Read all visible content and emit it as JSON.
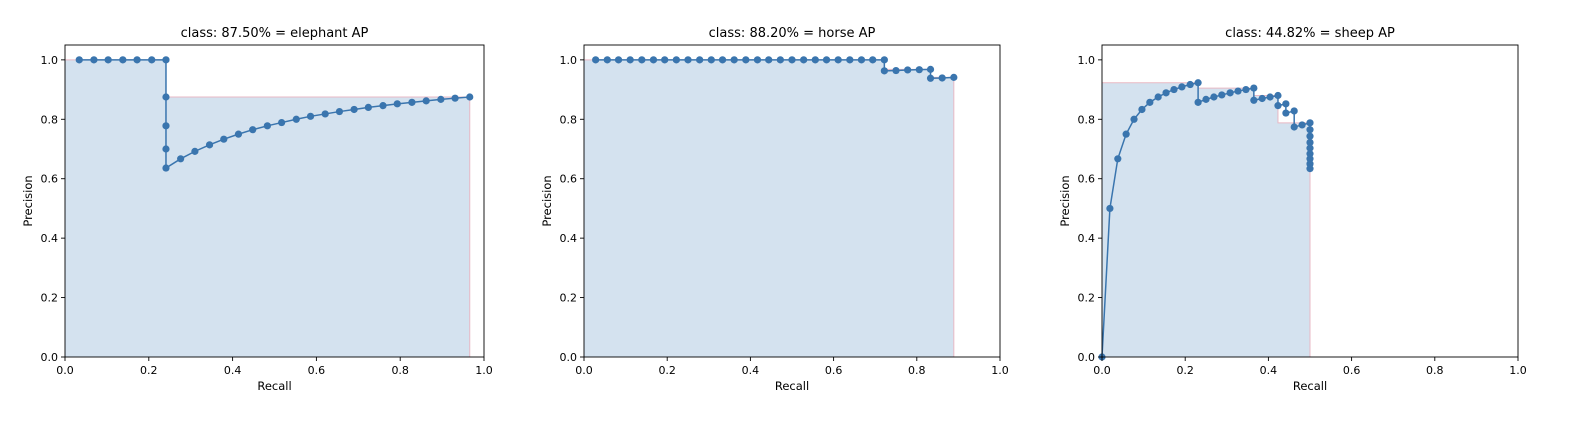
{
  "chart_data": [
    {
      "type": "line",
      "title": "class: 87.50% = elephant AP",
      "xlabel": "Recall",
      "ylabel": "Precision",
      "xlim": [
        0,
        1.0
      ],
      "ylim": [
        0,
        1.05
      ],
      "xticks": [
        "0.0",
        "0.2",
        "0.4",
        "0.6",
        "0.8",
        "1.0"
      ],
      "yticks": [
        "0.0",
        "0.2",
        "0.4",
        "0.6",
        "0.8",
        "1.0"
      ],
      "colors": {
        "line": "#3a75ae",
        "fill": "#d4e2ef",
        "edge": "#e8b8c4"
      },
      "series": [
        {
          "x": [
            0.034,
            0.069,
            0.103,
            0.138,
            0.172,
            0.207,
            0.241,
            0.241,
            0.241,
            0.241,
            0.241,
            0.276,
            0.31,
            0.345,
            0.379,
            0.414,
            0.448,
            0.483,
            0.517,
            0.552,
            0.586,
            0.621,
            0.655,
            0.69,
            0.724,
            0.759,
            0.793,
            0.828,
            0.862,
            0.897,
            0.931,
            0.966
          ],
          "y": [
            1.0,
            1.0,
            1.0,
            1.0,
            1.0,
            1.0,
            1.0,
            0.875,
            0.778,
            0.7,
            0.636,
            0.667,
            0.692,
            0.714,
            0.733,
            0.75,
            0.765,
            0.778,
            0.789,
            0.8,
            0.81,
            0.818,
            0.826,
            0.833,
            0.84,
            0.846,
            0.852,
            0.857,
            0.862,
            0.867,
            0.871,
            0.875
          ]
        }
      ],
      "interpolated": {
        "x": [
          0,
          0.241,
          0.241,
          0.966,
          0.966
        ],
        "y": [
          1.0,
          1.0,
          0.875,
          0.875,
          0
        ]
      }
    },
    {
      "type": "line",
      "title": "class: 88.20% = horse AP",
      "xlabel": "Recall",
      "ylabel": "Precision",
      "xlim": [
        0,
        1.0
      ],
      "ylim": [
        0,
        1.05
      ],
      "xticks": [
        "0.0",
        "0.2",
        "0.4",
        "0.6",
        "0.8",
        "1.0"
      ],
      "yticks": [
        "0.0",
        "0.2",
        "0.4",
        "0.6",
        "0.8",
        "1.0"
      ],
      "colors": {
        "line": "#3a75ae",
        "fill": "#d4e2ef",
        "edge": "#e8b8c4"
      },
      "series": [
        {
          "x": [
            0.028,
            0.056,
            0.083,
            0.111,
            0.139,
            0.167,
            0.194,
            0.222,
            0.25,
            0.278,
            0.306,
            0.333,
            0.361,
            0.389,
            0.417,
            0.444,
            0.472,
            0.5,
            0.528,
            0.556,
            0.583,
            0.611,
            0.639,
            0.667,
            0.694,
            0.722,
            0.722,
            0.75,
            0.778,
            0.806,
            0.833,
            0.833,
            0.861,
            0.889
          ],
          "y": [
            1.0,
            1.0,
            1.0,
            1.0,
            1.0,
            1.0,
            1.0,
            1.0,
            1.0,
            1.0,
            1.0,
            1.0,
            1.0,
            1.0,
            1.0,
            1.0,
            1.0,
            1.0,
            1.0,
            1.0,
            1.0,
            1.0,
            1.0,
            1.0,
            1.0,
            1.0,
            0.963,
            0.964,
            0.966,
            0.967,
            0.968,
            0.938,
            0.939,
            0.941
          ]
        }
      ],
      "interpolated": {
        "x": [
          0,
          0.722,
          0.722,
          0.833,
          0.833,
          0.889,
          0.889
        ],
        "y": [
          1.0,
          1.0,
          0.968,
          0.968,
          0.941,
          0.941,
          0
        ]
      }
    },
    {
      "type": "line",
      "title": "class: 44.82% = sheep AP",
      "xlabel": "Recall",
      "ylabel": "Precision",
      "xlim": [
        0,
        1.0
      ],
      "ylim": [
        0,
        1.05
      ],
      "xticks": [
        "0.0",
        "0.2",
        "0.4",
        "0.6",
        "0.8",
        "1.0"
      ],
      "yticks": [
        "0.0",
        "0.2",
        "0.4",
        "0.6",
        "0.8",
        "1.0"
      ],
      "colors": {
        "line": "#3a75ae",
        "fill": "#d4e2ef",
        "edge": "#e8b8c4"
      },
      "series": [
        {
          "x": [
            0.0,
            0.019,
            0.038,
            0.058,
            0.077,
            0.096,
            0.115,
            0.135,
            0.154,
            0.173,
            0.192,
            0.212,
            0.231,
            0.231,
            0.25,
            0.269,
            0.288,
            0.308,
            0.327,
            0.346,
            0.365,
            0.365,
            0.385,
            0.404,
            0.423,
            0.423,
            0.442,
            0.442,
            0.462,
            0.462,
            0.481,
            0.5,
            0.5,
            0.5,
            0.5,
            0.5,
            0.5,
            0.5,
            0.5,
            0.5
          ],
          "y": [
            0.0,
            0.5,
            0.667,
            0.75,
            0.8,
            0.833,
            0.857,
            0.875,
            0.889,
            0.9,
            0.909,
            0.917,
            0.923,
            0.857,
            0.867,
            0.875,
            0.882,
            0.889,
            0.895,
            0.9,
            0.905,
            0.864,
            0.87,
            0.875,
            0.88,
            0.846,
            0.852,
            0.821,
            0.828,
            0.774,
            0.781,
            0.788,
            0.765,
            0.743,
            0.722,
            0.703,
            0.684,
            0.667,
            0.65,
            0.634
          ]
        }
      ],
      "interpolated": {
        "x": [
          0,
          0.231,
          0.231,
          0.365,
          0.365,
          0.423,
          0.423,
          0.5,
          0.5
        ],
        "y": [
          0.923,
          0.923,
          0.905,
          0.905,
          0.88,
          0.88,
          0.788,
          0.788,
          0
        ]
      }
    }
  ]
}
